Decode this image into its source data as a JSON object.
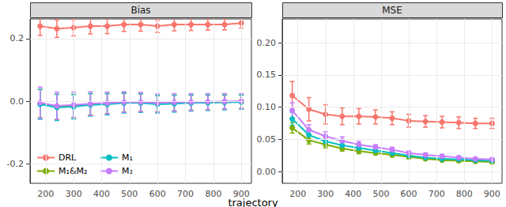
{
  "chart_data": [
    {
      "type": "line",
      "title": "Bias",
      "xlabel": "trajectory",
      "x": [
        180,
        240,
        300,
        360,
        420,
        480,
        540,
        600,
        660,
        720,
        780,
        840,
        900
      ],
      "xlim": [
        144,
        936
      ],
      "xticks": [
        200,
        300,
        400,
        500,
        600,
        700,
        800,
        900
      ],
      "ylim": [
        -0.263,
        0.263
      ],
      "yticks": [
        -0.2,
        {
          "value": 0,
          "label": "0.0"
        },
        0.2
      ],
      "grid": true,
      "legend": "lower left",
      "marker": "circle",
      "series": [
        {
          "name": "DRL",
          "color": "#F8766D",
          "values": [
            0.24,
            0.232,
            0.235,
            0.24,
            0.24,
            0.245,
            0.245,
            0.24,
            0.245,
            0.245,
            0.245,
            0.245,
            0.25
          ],
          "errors": [
            0.03,
            0.028,
            0.026,
            0.025,
            0.024,
            0.022,
            0.021,
            0.02,
            0.02,
            0.019,
            0.018,
            0.017,
            0.016
          ]
        },
        {
          "name": "M₁&M₂",
          "color": "#7CAE00",
          "values": [
            -0.008,
            -0.018,
            -0.015,
            -0.01,
            -0.008,
            -0.005,
            -0.005,
            -0.008,
            -0.006,
            -0.005,
            -0.004,
            -0.003,
            -0.002
          ],
          "errors": [
            0.045,
            0.04,
            0.037,
            0.034,
            0.032,
            0.03,
            0.028,
            0.026,
            0.025,
            0.024,
            0.023,
            0.022,
            0.021
          ]
        },
        {
          "name": "M₁",
          "color": "#00BFC4",
          "values": [
            -0.01,
            -0.02,
            -0.018,
            -0.012,
            -0.01,
            -0.006,
            -0.006,
            -0.01,
            -0.008,
            -0.006,
            -0.005,
            -0.004,
            -0.003
          ],
          "errors": [
            0.048,
            0.042,
            0.039,
            0.036,
            0.034,
            0.032,
            0.03,
            0.028,
            0.027,
            0.026,
            0.025,
            0.024,
            0.023
          ]
        },
        {
          "name": "M₂",
          "color": "#C77CFF",
          "values": [
            -0.005,
            -0.015,
            -0.012,
            -0.008,
            -0.006,
            -0.003,
            -0.003,
            -0.006,
            -0.004,
            -0.003,
            -0.002,
            -0.001,
            0.0
          ],
          "errors": [
            0.05,
            0.044,
            0.041,
            0.038,
            0.035,
            0.033,
            0.031,
            0.029,
            0.028,
            0.027,
            0.026,
            0.025,
            0.024
          ]
        }
      ]
    },
    {
      "type": "line",
      "title": "MSE",
      "x": [
        180,
        240,
        300,
        360,
        420,
        480,
        540,
        600,
        660,
        720,
        780,
        840,
        900
      ],
      "xlim": [
        144,
        936
      ],
      "xticks": [
        200,
        300,
        400,
        500,
        600,
        700,
        800,
        900
      ],
      "ylim": [
        -0.018,
        0.237
      ],
      "yticks": [
        {
          "value": 0,
          "label": "0.00"
        },
        {
          "value": 0.05,
          "label": "0.05"
        },
        {
          "value": 0.1,
          "label": "0.10"
        },
        {
          "value": 0.15,
          "label": "0.15"
        },
        {
          "value": 0.2,
          "label": "0.20"
        }
      ],
      "grid": true,
      "marker": "circle",
      "series": [
        {
          "name": "DRL",
          "color": "#F8766D",
          "values": [
            0.118,
            0.097,
            0.089,
            0.086,
            0.086,
            0.085,
            0.083,
            0.079,
            0.078,
            0.077,
            0.076,
            0.075,
            0.075
          ],
          "errors": [
            0.022,
            0.018,
            0.015,
            0.013,
            0.012,
            0.011,
            0.01,
            0.01,
            0.009,
            0.009,
            0.009,
            0.008,
            0.008
          ]
        },
        {
          "name": "M₁&M₂",
          "color": "#7CAE00",
          "values": [
            0.068,
            0.049,
            0.042,
            0.036,
            0.032,
            0.029,
            0.026,
            0.023,
            0.02,
            0.018,
            0.017,
            0.016,
            0.015
          ],
          "errors": [
            0.008,
            0.006,
            0.005,
            0.004,
            0.004,
            0.003,
            0.003,
            0.003,
            0.002,
            0.002,
            0.002,
            0.002,
            0.002
          ]
        },
        {
          "name": "M₁",
          "color": "#00BFC4",
          "values": [
            0.082,
            0.057,
            0.047,
            0.041,
            0.037,
            0.033,
            0.029,
            0.025,
            0.022,
            0.02,
            0.019,
            0.018,
            0.017
          ],
          "errors": [
            0.01,
            0.007,
            0.006,
            0.005,
            0.004,
            0.004,
            0.003,
            0.003,
            0.003,
            0.002,
            0.002,
            0.002,
            0.002
          ]
        },
        {
          "name": "M₂",
          "color": "#C77CFF",
          "values": [
            0.095,
            0.065,
            0.055,
            0.048,
            0.042,
            0.038,
            0.034,
            0.029,
            0.026,
            0.024,
            0.022,
            0.02,
            0.019
          ],
          "errors": [
            0.012,
            0.008,
            0.007,
            0.006,
            0.005,
            0.004,
            0.004,
            0.003,
            0.003,
            0.003,
            0.002,
            0.002,
            0.002
          ]
        }
      ]
    }
  ]
}
